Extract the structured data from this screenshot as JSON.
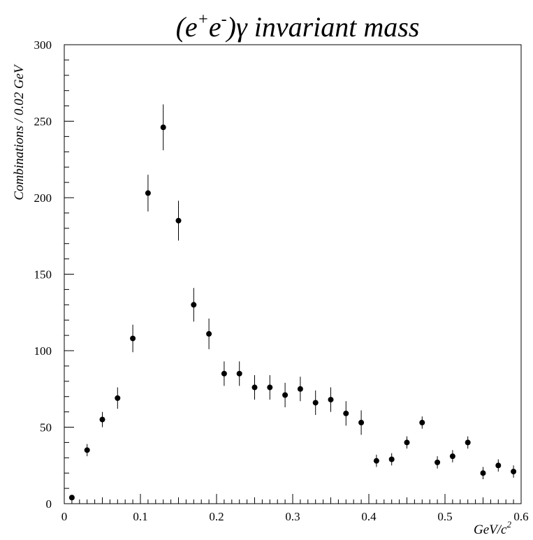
{
  "chart_data": {
    "type": "scatter",
    "title": {
      "paren_open": "(e",
      "plus_sup": "+",
      "e_mid": "e",
      "minus_sup": "-",
      "paren_close": ")γ invariant mass"
    },
    "xlabel": {
      "base": "GeV/c",
      "sup": "2"
    },
    "ylabel": "Combinations / 0.02 GeV",
    "xlim": [
      0,
      0.6
    ],
    "ylim": [
      0,
      300
    ],
    "x_ticks": [
      "0",
      "0.1",
      "0.2",
      "0.3",
      "0.4",
      "0.5",
      "0.6"
    ],
    "y_ticks": [
      "0",
      "50",
      "100",
      "150",
      "200",
      "250",
      "300"
    ],
    "grid": false,
    "marker_color": "#000000",
    "points": [
      {
        "x": 0.01,
        "y": 4,
        "err": 0
      },
      {
        "x": 0.03,
        "y": 35,
        "err": 4
      },
      {
        "x": 0.05,
        "y": 55,
        "err": 5
      },
      {
        "x": 0.07,
        "y": 69,
        "err": 7
      },
      {
        "x": 0.09,
        "y": 108,
        "err": 9
      },
      {
        "x": 0.11,
        "y": 203,
        "err": 12
      },
      {
        "x": 0.13,
        "y": 246,
        "err": 15
      },
      {
        "x": 0.15,
        "y": 185,
        "err": 13
      },
      {
        "x": 0.17,
        "y": 130,
        "err": 11
      },
      {
        "x": 0.19,
        "y": 111,
        "err": 10
      },
      {
        "x": 0.21,
        "y": 85,
        "err": 8
      },
      {
        "x": 0.23,
        "y": 85,
        "err": 8
      },
      {
        "x": 0.25,
        "y": 76,
        "err": 8
      },
      {
        "x": 0.27,
        "y": 76,
        "err": 8
      },
      {
        "x": 0.29,
        "y": 71,
        "err": 8
      },
      {
        "x": 0.31,
        "y": 75,
        "err": 8
      },
      {
        "x": 0.33,
        "y": 66,
        "err": 8
      },
      {
        "x": 0.35,
        "y": 68,
        "err": 8
      },
      {
        "x": 0.37,
        "y": 59,
        "err": 8
      },
      {
        "x": 0.39,
        "y": 53,
        "err": 8
      },
      {
        "x": 0.41,
        "y": 28,
        "err": 4
      },
      {
        "x": 0.43,
        "y": 29,
        "err": 4
      },
      {
        "x": 0.45,
        "y": 40,
        "err": 4
      },
      {
        "x": 0.47,
        "y": 53,
        "err": 4
      },
      {
        "x": 0.49,
        "y": 27,
        "err": 4
      },
      {
        "x": 0.51,
        "y": 31,
        "err": 4
      },
      {
        "x": 0.53,
        "y": 40,
        "err": 4
      },
      {
        "x": 0.55,
        "y": 20,
        "err": 4
      },
      {
        "x": 0.57,
        "y": 25,
        "err": 4
      },
      {
        "x": 0.59,
        "y": 21,
        "err": 4
      }
    ]
  }
}
